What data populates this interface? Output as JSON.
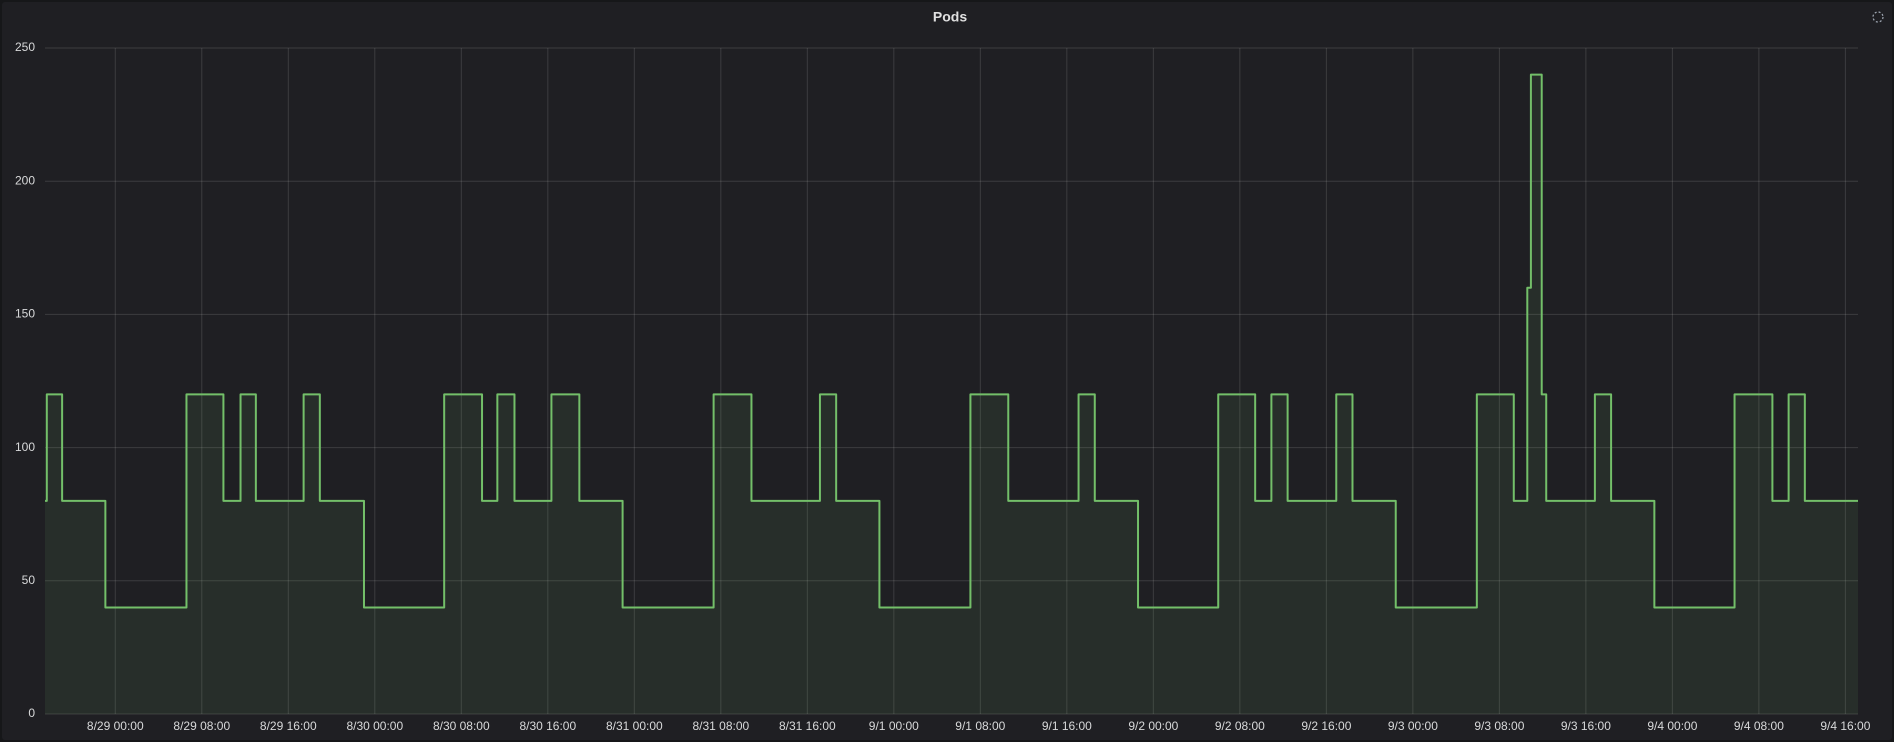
{
  "chart_data": {
    "type": "line",
    "title": "Pods",
    "step": true,
    "fill": true,
    "color": "#73bf69",
    "grid": true,
    "xlim": [
      "8/28 17:30",
      "9/4 17:10"
    ],
    "xticks": [
      "8/29 00:00",
      "8/29 08:00",
      "8/29 16:00",
      "8/30 00:00",
      "8/30 08:00",
      "8/30 16:00",
      "8/31 00:00",
      "8/31 08:00",
      "8/31 16:00",
      "9/1 00:00",
      "9/1 08:00",
      "9/1 16:00",
      "9/2 00:00",
      "9/2 08:00",
      "9/2 16:00",
      "9/3 00:00",
      "9/3 08:00",
      "9/3 16:00",
      "9/4 00:00",
      "9/4 08:00",
      "9/4 16:00"
    ],
    "ylim": [
      0,
      250
    ],
    "yticks": [
      0,
      50,
      100,
      150,
      200,
      250
    ],
    "series": [
      {
        "name": "Pods",
        "color": "#73bf69",
        "x": [
          "8/28 17:30",
          "8/28 17:40",
          "8/28 19:05",
          "8/28 23:05",
          "8/29 06:35",
          "8/29 10:00",
          "8/29 11:35",
          "8/29 13:00",
          "8/29 17:25",
          "8/29 18:55",
          "8/29 23:00",
          "8/30 06:25",
          "8/30 09:55",
          "8/30 11:20",
          "8/30 12:55",
          "8/30 16:20",
          "8/30 18:55",
          "8/30 22:55",
          "8/31 07:20",
          "8/31 10:50",
          "8/31 17:10",
          "8/31 18:40",
          "8/31 22:40",
          "9/1 07:05",
          "9/1 10:35",
          "9/1 17:05",
          "9/1 18:35",
          "9/1 22:35",
          "9/2 06:00",
          "9/2 09:25",
          "9/2 10:55",
          "9/2 12:25",
          "9/2 16:55",
          "9/2 18:25",
          "9/2 22:25",
          "9/3 05:55",
          "9/3 09:20",
          "9/3 10:35",
          "9/3 10:55",
          "9/3 11:55",
          "9/3 12:20",
          "9/3 16:50",
          "9/3 18:20",
          "9/3 22:20",
          "9/4 05:45",
          "9/4 09:15",
          "9/4 10:45",
          "9/4 12:15",
          "9/4 17:10"
        ],
        "values": [
          80,
          120,
          80,
          40,
          120,
          80,
          120,
          80,
          120,
          80,
          40,
          120,
          80,
          120,
          80,
          120,
          80,
          40,
          120,
          80,
          120,
          80,
          40,
          120,
          80,
          120,
          80,
          40,
          120,
          80,
          120,
          80,
          120,
          80,
          40,
          120,
          80,
          160,
          240,
          120,
          80,
          120,
          80,
          40,
          120,
          80,
          120,
          80,
          80
        ]
      }
    ]
  }
}
